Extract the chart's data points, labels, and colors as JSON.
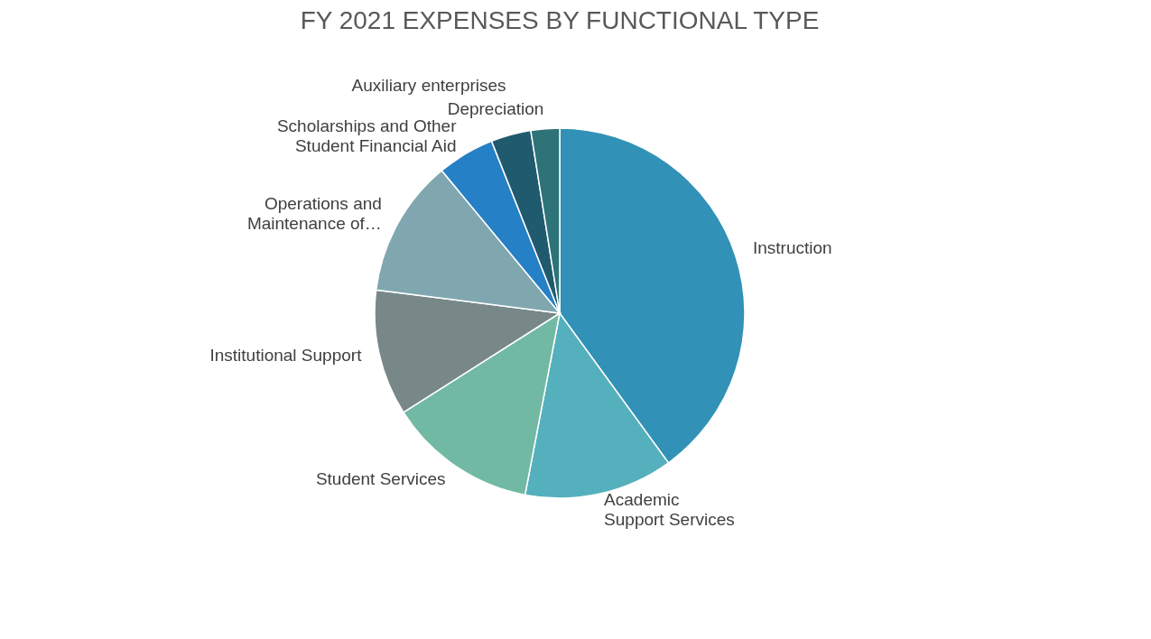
{
  "chart_data": {
    "type": "pie",
    "title": "FY 2021 EXPENSES BY FUNCTIONAL TYPE",
    "categories": [
      "Instruction",
      "Academic Support Services",
      "Student Services",
      "Institutional Support",
      "Operations and Maintenance of…",
      "Scholarships and Other Student Financial Aid",
      "Auxiliary enterprises",
      "Depreciation"
    ],
    "values": [
      40,
      13,
      13,
      11,
      12,
      5,
      3.5,
      2.5
    ],
    "colors": [
      "#3291b6",
      "#55b0bd",
      "#72b9a4",
      "#788889",
      "#80a7b0",
      "#2580c5",
      "#1f5a6e",
      "#2d7378"
    ],
    "legend": false
  }
}
